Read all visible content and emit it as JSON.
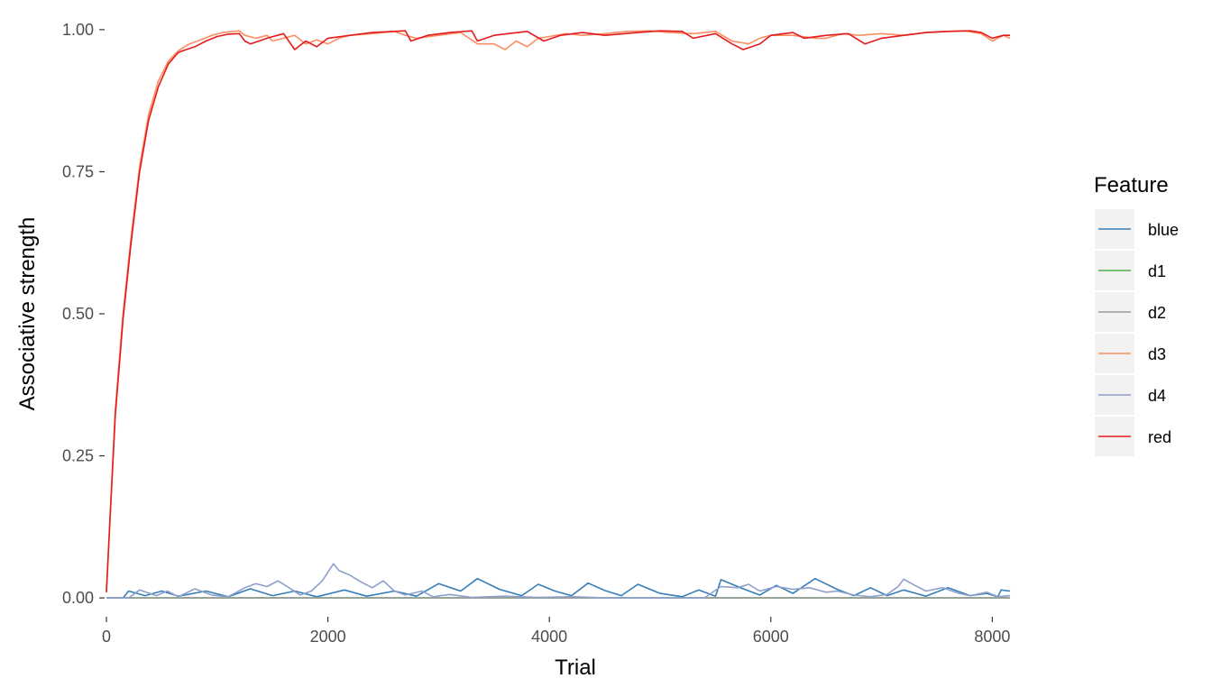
{
  "chart_data": {
    "type": "line",
    "title": "",
    "xlabel": "Trial",
    "ylabel": "Associative strength",
    "xlim": [
      0,
      8160
    ],
    "ylim": [
      -0.03,
      1.03
    ],
    "xticks": [
      0,
      2000,
      4000,
      6000,
      8000
    ],
    "xtick_labels": [
      "0",
      "2000",
      "4000",
      "6000",
      "8000"
    ],
    "yticks": [
      0,
      0.25,
      0.5,
      0.75,
      1.0
    ],
    "ytick_labels": [
      "0.00",
      "0.25",
      "0.50",
      "0.75",
      "1.00"
    ],
    "grid": false,
    "legend": {
      "title": "Feature",
      "position": "right"
    },
    "series": [
      {
        "name": "blue",
        "color": "#377eb8",
        "points": [
          [
            0,
            0
          ],
          [
            150,
            0
          ],
          [
            200,
            0.012
          ],
          [
            350,
            0.004
          ],
          [
            500,
            0.012
          ],
          [
            650,
            0.003
          ],
          [
            900,
            0.012
          ],
          [
            1100,
            0.002
          ],
          [
            1300,
            0.016
          ],
          [
            1500,
            0.004
          ],
          [
            1700,
            0.012
          ],
          [
            1900,
            0.002
          ],
          [
            2150,
            0.014
          ],
          [
            2350,
            0.003
          ],
          [
            2600,
            0.012
          ],
          [
            2800,
            0.003
          ],
          [
            3000,
            0.025
          ],
          [
            3200,
            0.012
          ],
          [
            3350,
            0.034
          ],
          [
            3550,
            0.015
          ],
          [
            3750,
            0.004
          ],
          [
            3900,
            0.024
          ],
          [
            4050,
            0.012
          ],
          [
            4200,
            0.004
          ],
          [
            4350,
            0.026
          ],
          [
            4500,
            0.013
          ],
          [
            4650,
            0.004
          ],
          [
            4800,
            0.024
          ],
          [
            5000,
            0.008
          ],
          [
            5200,
            0.002
          ],
          [
            5350,
            0.014
          ],
          [
            5500,
            0.003
          ],
          [
            5550,
            0.032
          ],
          [
            5750,
            0.016
          ],
          [
            5900,
            0.005
          ],
          [
            6050,
            0.022
          ],
          [
            6200,
            0.008
          ],
          [
            6400,
            0.034
          ],
          [
            6600,
            0.015
          ],
          [
            6750,
            0.004
          ],
          [
            6900,
            0.018
          ],
          [
            7050,
            0.004
          ],
          [
            7200,
            0.014
          ],
          [
            7400,
            0.003
          ],
          [
            7600,
            0.018
          ],
          [
            7800,
            0.004
          ],
          [
            7950,
            0.008
          ],
          [
            8050,
            0.002
          ],
          [
            8080,
            0.014
          ],
          [
            8160,
            0.012
          ]
        ]
      },
      {
        "name": "d1",
        "color": "#4daf4a",
        "points": [
          [
            0,
            0
          ],
          [
            8160,
            0
          ]
        ]
      },
      {
        "name": "d2",
        "color": "#999999",
        "points": [
          [
            0,
            0
          ],
          [
            8160,
            0
          ]
        ]
      },
      {
        "name": "d3",
        "color": "#fc8d62",
        "points": [
          [
            0,
            0.01
          ],
          [
            30,
            0.13
          ],
          [
            80,
            0.33
          ],
          [
            150,
            0.5
          ],
          [
            220,
            0.63
          ],
          [
            300,
            0.76
          ],
          [
            380,
            0.85
          ],
          [
            470,
            0.91
          ],
          [
            560,
            0.945
          ],
          [
            650,
            0.963
          ],
          [
            750,
            0.975
          ],
          [
            850,
            0.982
          ],
          [
            950,
            0.99
          ],
          [
            1050,
            0.995
          ],
          [
            1200,
            0.998
          ],
          [
            1250,
            0.99
          ],
          [
            1350,
            0.985
          ],
          [
            1450,
            0.99
          ],
          [
            1500,
            0.98
          ],
          [
            1600,
            0.985
          ],
          [
            1700,
            0.99
          ],
          [
            1800,
            0.975
          ],
          [
            1900,
            0.982
          ],
          [
            2000,
            0.975
          ],
          [
            2100,
            0.985
          ],
          [
            2200,
            0.99
          ],
          [
            2400,
            0.993
          ],
          [
            2600,
            0.997
          ],
          [
            2700,
            0.99
          ],
          [
            2800,
            0.985
          ],
          [
            3000,
            0.99
          ],
          [
            3200,
            0.995
          ],
          [
            3350,
            0.975
          ],
          [
            3500,
            0.975
          ],
          [
            3600,
            0.965
          ],
          [
            3700,
            0.98
          ],
          [
            3800,
            0.97
          ],
          [
            3900,
            0.985
          ],
          [
            4000,
            0.988
          ],
          [
            4150,
            0.993
          ],
          [
            4300,
            0.99
          ],
          [
            4500,
            0.993
          ],
          [
            4700,
            0.997
          ],
          [
            4900,
            0.998
          ],
          [
            5100,
            0.995
          ],
          [
            5300,
            0.993
          ],
          [
            5500,
            0.997
          ],
          [
            5650,
            0.98
          ],
          [
            5800,
            0.975
          ],
          [
            5900,
            0.985
          ],
          [
            6000,
            0.99
          ],
          [
            6200,
            0.99
          ],
          [
            6400,
            0.985
          ],
          [
            6500,
            0.985
          ],
          [
            6650,
            0.993
          ],
          [
            6800,
            0.99
          ],
          [
            7000,
            0.993
          ],
          [
            7200,
            0.99
          ],
          [
            7400,
            0.995
          ],
          [
            7600,
            0.997
          ],
          [
            7750,
            0.998
          ],
          [
            7900,
            0.993
          ],
          [
            8000,
            0.98
          ],
          [
            8100,
            0.99
          ],
          [
            8160,
            0.985
          ]
        ]
      },
      {
        "name": "d4",
        "color": "#8da0cb",
        "points": [
          [
            0,
            0
          ],
          [
            200,
            0
          ],
          [
            300,
            0.014
          ],
          [
            450,
            0.004
          ],
          [
            550,
            0.012
          ],
          [
            650,
            0.002
          ],
          [
            800,
            0.016
          ],
          [
            950,
            0.005
          ],
          [
            1100,
            0.002
          ],
          [
            1250,
            0.018
          ],
          [
            1350,
            0.025
          ],
          [
            1450,
            0.02
          ],
          [
            1550,
            0.03
          ],
          [
            1650,
            0.018
          ],
          [
            1750,
            0.005
          ],
          [
            1850,
            0.012
          ],
          [
            1950,
            0.03
          ],
          [
            2000,
            0.045
          ],
          [
            2050,
            0.06
          ],
          [
            2100,
            0.048
          ],
          [
            2200,
            0.04
          ],
          [
            2300,
            0.028
          ],
          [
            2400,
            0.018
          ],
          [
            2500,
            0.03
          ],
          [
            2600,
            0.012
          ],
          [
            2700,
            0.005
          ],
          [
            2850,
            0.012
          ],
          [
            2950,
            0.002
          ],
          [
            3100,
            0.006
          ],
          [
            3300,
            0.001
          ],
          [
            3600,
            0.003
          ],
          [
            3900,
            0.001
          ],
          [
            4200,
            0.002
          ],
          [
            4500,
            0.0
          ],
          [
            5400,
            0.0
          ],
          [
            5550,
            0.02
          ],
          [
            5700,
            0.018
          ],
          [
            5800,
            0.024
          ],
          [
            5900,
            0.012
          ],
          [
            6050,
            0.02
          ],
          [
            6200,
            0.015
          ],
          [
            6350,
            0.018
          ],
          [
            6500,
            0.01
          ],
          [
            6600,
            0.012
          ],
          [
            6750,
            0.005
          ],
          [
            6900,
            0.002
          ],
          [
            7050,
            0.006
          ],
          [
            7150,
            0.02
          ],
          [
            7200,
            0.033
          ],
          [
            7300,
            0.022
          ],
          [
            7400,
            0.012
          ],
          [
            7550,
            0.018
          ],
          [
            7700,
            0.008
          ],
          [
            7800,
            0.004
          ],
          [
            7950,
            0.01
          ],
          [
            8050,
            0.002
          ],
          [
            8160,
            0.004
          ]
        ]
      },
      {
        "name": "red",
        "color": "#e41a1c",
        "points": [
          [
            0,
            0.01
          ],
          [
            30,
            0.13
          ],
          [
            80,
            0.32
          ],
          [
            150,
            0.49
          ],
          [
            220,
            0.62
          ],
          [
            300,
            0.75
          ],
          [
            380,
            0.84
          ],
          [
            470,
            0.9
          ],
          [
            560,
            0.94
          ],
          [
            650,
            0.96
          ],
          [
            720,
            0.965
          ],
          [
            800,
            0.97
          ],
          [
            900,
            0.98
          ],
          [
            1000,
            0.988
          ],
          [
            1100,
            0.992
          ],
          [
            1200,
            0.993
          ],
          [
            1250,
            0.98
          ],
          [
            1300,
            0.975
          ],
          [
            1450,
            0.985
          ],
          [
            1600,
            0.993
          ],
          [
            1700,
            0.965
          ],
          [
            1800,
            0.98
          ],
          [
            1900,
            0.97
          ],
          [
            2000,
            0.985
          ],
          [
            2200,
            0.99
          ],
          [
            2400,
            0.995
          ],
          [
            2700,
            0.998
          ],
          [
            2750,
            0.98
          ],
          [
            2900,
            0.99
          ],
          [
            3100,
            0.995
          ],
          [
            3300,
            0.998
          ],
          [
            3350,
            0.98
          ],
          [
            3500,
            0.99
          ],
          [
            3800,
            0.997
          ],
          [
            3950,
            0.98
          ],
          [
            4100,
            0.99
          ],
          [
            4300,
            0.995
          ],
          [
            4500,
            0.99
          ],
          [
            4800,
            0.995
          ],
          [
            5000,
            0.998
          ],
          [
            5200,
            0.997
          ],
          [
            5300,
            0.985
          ],
          [
            5500,
            0.993
          ],
          [
            5650,
            0.975
          ],
          [
            5750,
            0.965
          ],
          [
            5900,
            0.975
          ],
          [
            6000,
            0.99
          ],
          [
            6200,
            0.995
          ],
          [
            6300,
            0.985
          ],
          [
            6500,
            0.99
          ],
          [
            6700,
            0.993
          ],
          [
            6850,
            0.975
          ],
          [
            7000,
            0.985
          ],
          [
            7200,
            0.99
          ],
          [
            7400,
            0.995
          ],
          [
            7600,
            0.997
          ],
          [
            7800,
            0.998
          ],
          [
            7900,
            0.995
          ],
          [
            8000,
            0.985
          ],
          [
            8100,
            0.99
          ],
          [
            8160,
            0.99
          ]
        ]
      }
    ]
  }
}
